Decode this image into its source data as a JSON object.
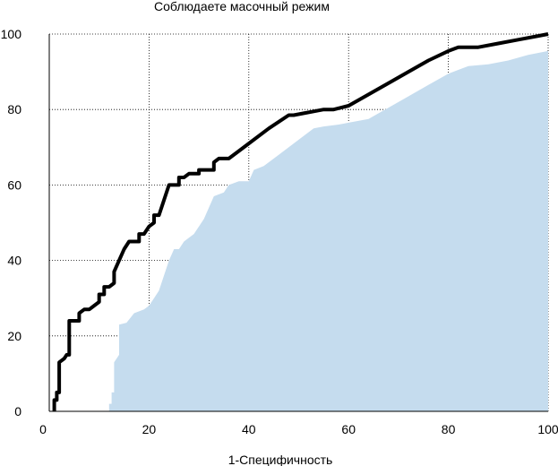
{
  "chart_data": {
    "type": "line",
    "title": "Соблюдаете масочный режим",
    "xlabel": "1-Специфичность",
    "ylabel": "",
    "xlim": [
      0,
      100
    ],
    "ylim": [
      0,
      100
    ],
    "x_ticks": [
      "0",
      "20",
      "40",
      "60",
      "80",
      "100"
    ],
    "y_ticks": [
      "0",
      "20",
      "40",
      "60",
      "80",
      "100"
    ],
    "grid": true,
    "legend": "none",
    "colors": {
      "roc_line": "#000000",
      "area_fill": "#c5dcee",
      "grid": "#000000"
    },
    "series": [
      {
        "kind": "line",
        "points": [
          [
            1,
            0
          ],
          [
            1,
            3
          ],
          [
            1.5,
            3
          ],
          [
            1.5,
            5
          ],
          [
            2,
            5
          ],
          [
            2,
            13
          ],
          [
            3,
            14
          ],
          [
            3.5,
            15
          ],
          [
            4,
            15
          ],
          [
            4,
            24
          ],
          [
            6,
            24
          ],
          [
            6,
            26
          ],
          [
            7,
            27
          ],
          [
            8,
            27
          ],
          [
            9,
            28
          ],
          [
            10,
            29
          ],
          [
            10,
            31
          ],
          [
            11,
            31
          ],
          [
            11,
            33
          ],
          [
            12,
            33
          ],
          [
            13,
            34
          ],
          [
            13,
            37
          ],
          [
            14,
            40
          ],
          [
            15,
            43
          ],
          [
            16,
            45
          ],
          [
            18,
            45
          ],
          [
            18,
            47
          ],
          [
            19,
            47
          ],
          [
            20,
            49
          ],
          [
            21,
            50
          ],
          [
            21,
            52
          ],
          [
            22,
            52
          ],
          [
            23,
            56
          ],
          [
            24,
            60
          ],
          [
            26,
            60
          ],
          [
            26,
            62
          ],
          [
            27,
            62
          ],
          [
            28,
            63
          ],
          [
            30,
            63
          ],
          [
            30,
            64
          ],
          [
            33,
            64
          ],
          [
            33,
            66
          ],
          [
            34,
            67
          ],
          [
            36,
            67
          ],
          [
            38,
            69
          ],
          [
            40,
            71
          ],
          [
            44,
            75
          ],
          [
            48,
            78.5
          ],
          [
            49,
            78.5
          ],
          [
            51,
            79
          ],
          [
            53,
            79.5
          ],
          [
            55,
            80
          ],
          [
            57,
            80
          ],
          [
            60,
            81
          ],
          [
            64,
            84
          ],
          [
            68,
            87
          ],
          [
            72,
            90
          ],
          [
            76,
            93
          ],
          [
            80,
            95.5
          ],
          [
            82,
            96.5
          ],
          [
            86,
            96.5
          ],
          [
            90,
            97.5
          ],
          [
            94,
            98.5
          ],
          [
            98,
            99.5
          ],
          [
            100,
            100
          ]
        ]
      },
      {
        "kind": "area",
        "points": [
          [
            12,
            0
          ],
          [
            12,
            2
          ],
          [
            12.5,
            2
          ],
          [
            12.5,
            5
          ],
          [
            13,
            5
          ],
          [
            13,
            13
          ],
          [
            13.5,
            14
          ],
          [
            14,
            15
          ],
          [
            14,
            23
          ],
          [
            15.5,
            23.5
          ],
          [
            17,
            26
          ],
          [
            18,
            26.5
          ],
          [
            19,
            27
          ],
          [
            20,
            28
          ],
          [
            21,
            30
          ],
          [
            22,
            32
          ],
          [
            23,
            36
          ],
          [
            24,
            40
          ],
          [
            25,
            43
          ],
          [
            26,
            43
          ],
          [
            27,
            45
          ],
          [
            28,
            46
          ],
          [
            29,
            47
          ],
          [
            30,
            49
          ],
          [
            31,
            51
          ],
          [
            32,
            54
          ],
          [
            33,
            57
          ],
          [
            35,
            58
          ],
          [
            36,
            60
          ],
          [
            38,
            61
          ],
          [
            40,
            61
          ],
          [
            41,
            64
          ],
          [
            43,
            65
          ],
          [
            46,
            68
          ],
          [
            50,
            72
          ],
          [
            53,
            75
          ],
          [
            55,
            75.5
          ],
          [
            58,
            76
          ],
          [
            60,
            76.5
          ],
          [
            64,
            77.5
          ],
          [
            68,
            80.5
          ],
          [
            72,
            83.5
          ],
          [
            76,
            86.5
          ],
          [
            80,
            89.5
          ],
          [
            84,
            91.5
          ],
          [
            88,
            92
          ],
          [
            92,
            93
          ],
          [
            96,
            94.5
          ],
          [
            100,
            95.5
          ],
          [
            100,
            0
          ]
        ]
      }
    ]
  }
}
